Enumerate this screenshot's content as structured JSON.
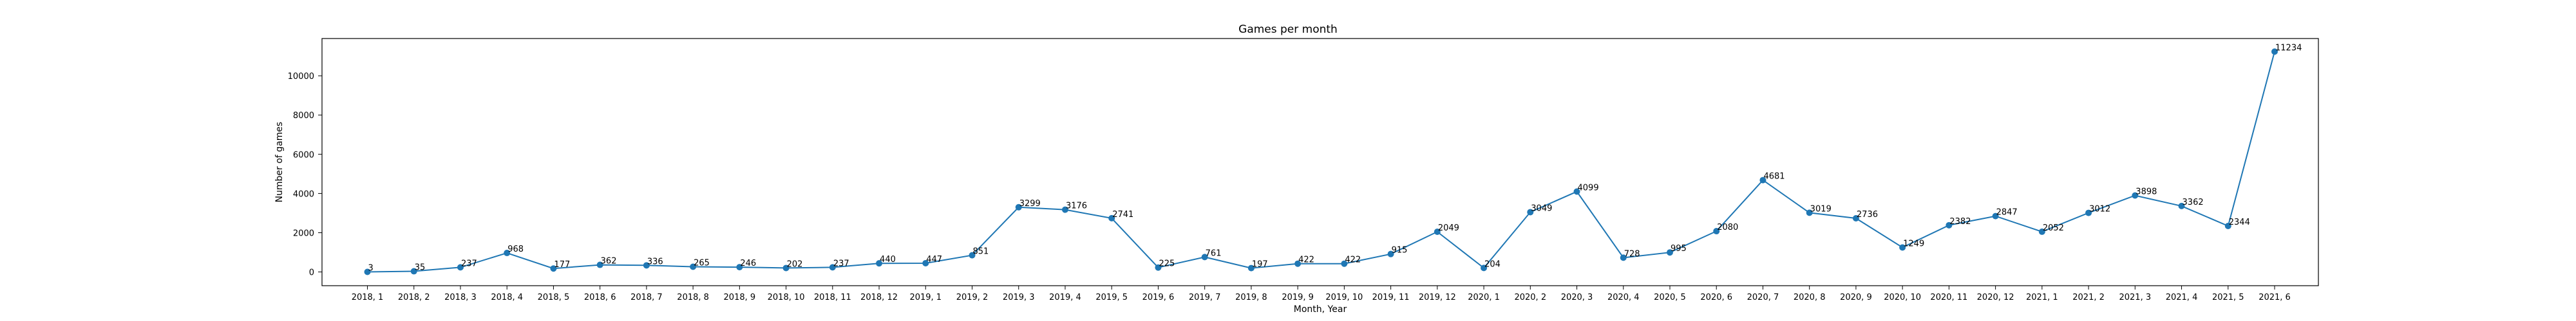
{
  "chart_data": {
    "type": "line",
    "title": "Games per month",
    "xlabel": "Month, Year",
    "ylabel": "Number of games",
    "ylim": [
      -700,
      11900
    ],
    "yticks": [
      0,
      2000,
      4000,
      6000,
      8000,
      10000
    ],
    "grid": false,
    "legend": "none",
    "line_color": "#1f77b4",
    "categories": [
      "2018, 1",
      "2018, 2",
      "2018, 3",
      "2018, 4",
      "2018, 5",
      "2018, 6",
      "2018, 7",
      "2018, 8",
      "2018, 9",
      "2018, 10",
      "2018, 11",
      "2018, 12",
      "2019, 1",
      "2019, 2",
      "2019, 3",
      "2019, 4",
      "2019, 5",
      "2019, 6",
      "2019, 7",
      "2019, 8",
      "2019, 9",
      "2019, 10",
      "2019, 11",
      "2019, 12",
      "2020, 1",
      "2020, 2",
      "2020, 3",
      "2020, 4",
      "2020, 5",
      "2020, 6",
      "2020, 7",
      "2020, 8",
      "2020, 9",
      "2020, 10",
      "2020, 11",
      "2020, 12",
      "2021, 1",
      "2021, 2",
      "2021, 3",
      "2021, 4",
      "2021, 5",
      "2021, 6"
    ],
    "values": [
      3,
      35,
      237,
      968,
      177,
      362,
      336,
      265,
      246,
      202,
      237,
      440,
      447,
      851,
      3299,
      3176,
      2741,
      225,
      761,
      197,
      422,
      422,
      915,
      2049,
      204,
      3049,
      4099,
      728,
      995,
      2080,
      4681,
      3019,
      2736,
      1249,
      2382,
      2847,
      2052,
      3012,
      3898,
      3362,
      2344,
      11234
    ]
  }
}
